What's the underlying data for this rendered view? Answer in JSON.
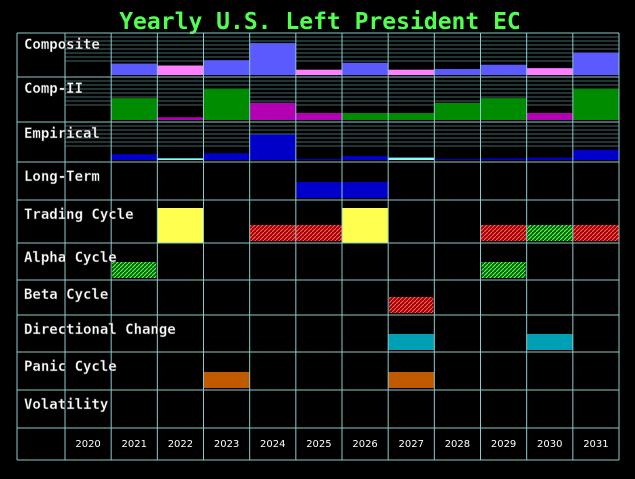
{
  "title": "Yearly U.S. Left President EC",
  "years": [
    "2020",
    "2021",
    "2022",
    "2023",
    "2024",
    "2025",
    "2026",
    "2027",
    "2028",
    "2029",
    "2030",
    "2031"
  ],
  "bar_rows": [
    {
      "label": "Composite",
      "values": [
        0,
        30,
        25,
        39,
        84,
        14,
        32,
        14,
        16,
        27,
        18,
        59
      ],
      "colors": [
        "#5a5aff",
        "#5a5aff",
        "#ff80ff",
        "#5a5aff",
        "#5a5aff",
        "#ff80ff",
        "#5a5aff",
        "#ff80ff",
        "#5a5aff",
        "#5a5aff",
        "#ff80ff",
        "#5a5aff"
      ]
    },
    {
      "label": "Comp-II",
      "values": [
        0,
        56,
        7,
        80,
        44,
        18,
        18,
        18,
        44,
        56,
        18,
        80
      ],
      "colors": [
        "#008c00",
        "#008c00",
        "#b400b4",
        "#008c00",
        "#b400b4",
        "#b400b4",
        "#008c00",
        "#008c00",
        "#008c00",
        "#008c00",
        "#b400b4",
        "#008c00"
      ]
    },
    {
      "label": "Empirical",
      "values": [
        0,
        17,
        5,
        20,
        75,
        3,
        12,
        7,
        3,
        5,
        7,
        30
      ],
      "colors": [
        "#0000c8",
        "#0000c8",
        "#80ffff",
        "#0000c8",
        "#0000c8",
        "#0000c8",
        "#0000c8",
        "#80ffff",
        "#0000c8",
        "#0000c8",
        "#0000c8",
        "#0000c8"
      ]
    }
  ],
  "signal_rows": [
    {
      "label": "Long-Term",
      "cells": [
        null,
        null,
        null,
        null,
        null,
        "#0000c8",
        "#0000c8",
        null,
        null,
        null,
        null,
        null
      ]
    },
    {
      "label": "Trading Cycle",
      "cells": [
        null,
        null,
        "#ffff50",
        null,
        "hatch-red",
        "hatch-red",
        "#ffff50",
        null,
        null,
        "hatch-red",
        "hatch-green",
        "hatch-red"
      ]
    },
    {
      "label": "Alpha Cycle",
      "cells": [
        null,
        "hatch-green",
        null,
        null,
        null,
        null,
        null,
        null,
        null,
        "hatch-green",
        null,
        null
      ]
    },
    {
      "label": "Beta Cycle",
      "cells": [
        null,
        null,
        null,
        null,
        null,
        null,
        null,
        "hatch-red",
        null,
        null,
        null,
        null
      ]
    },
    {
      "label": "Directional Change",
      "cells": [
        null,
        null,
        null,
        null,
        null,
        null,
        null,
        "#00a0b4",
        null,
        null,
        "#00a0b4",
        null
      ]
    },
    {
      "label": "Panic Cycle",
      "cells": [
        null,
        null,
        null,
        "#c05a00",
        null,
        null,
        null,
        "#c05a00",
        null,
        null,
        null,
        null
      ]
    },
    {
      "label": "Volatility",
      "cells": [
        null,
        null,
        null,
        null,
        null,
        null,
        null,
        null,
        null,
        null,
        null,
        null
      ]
    }
  ]
}
